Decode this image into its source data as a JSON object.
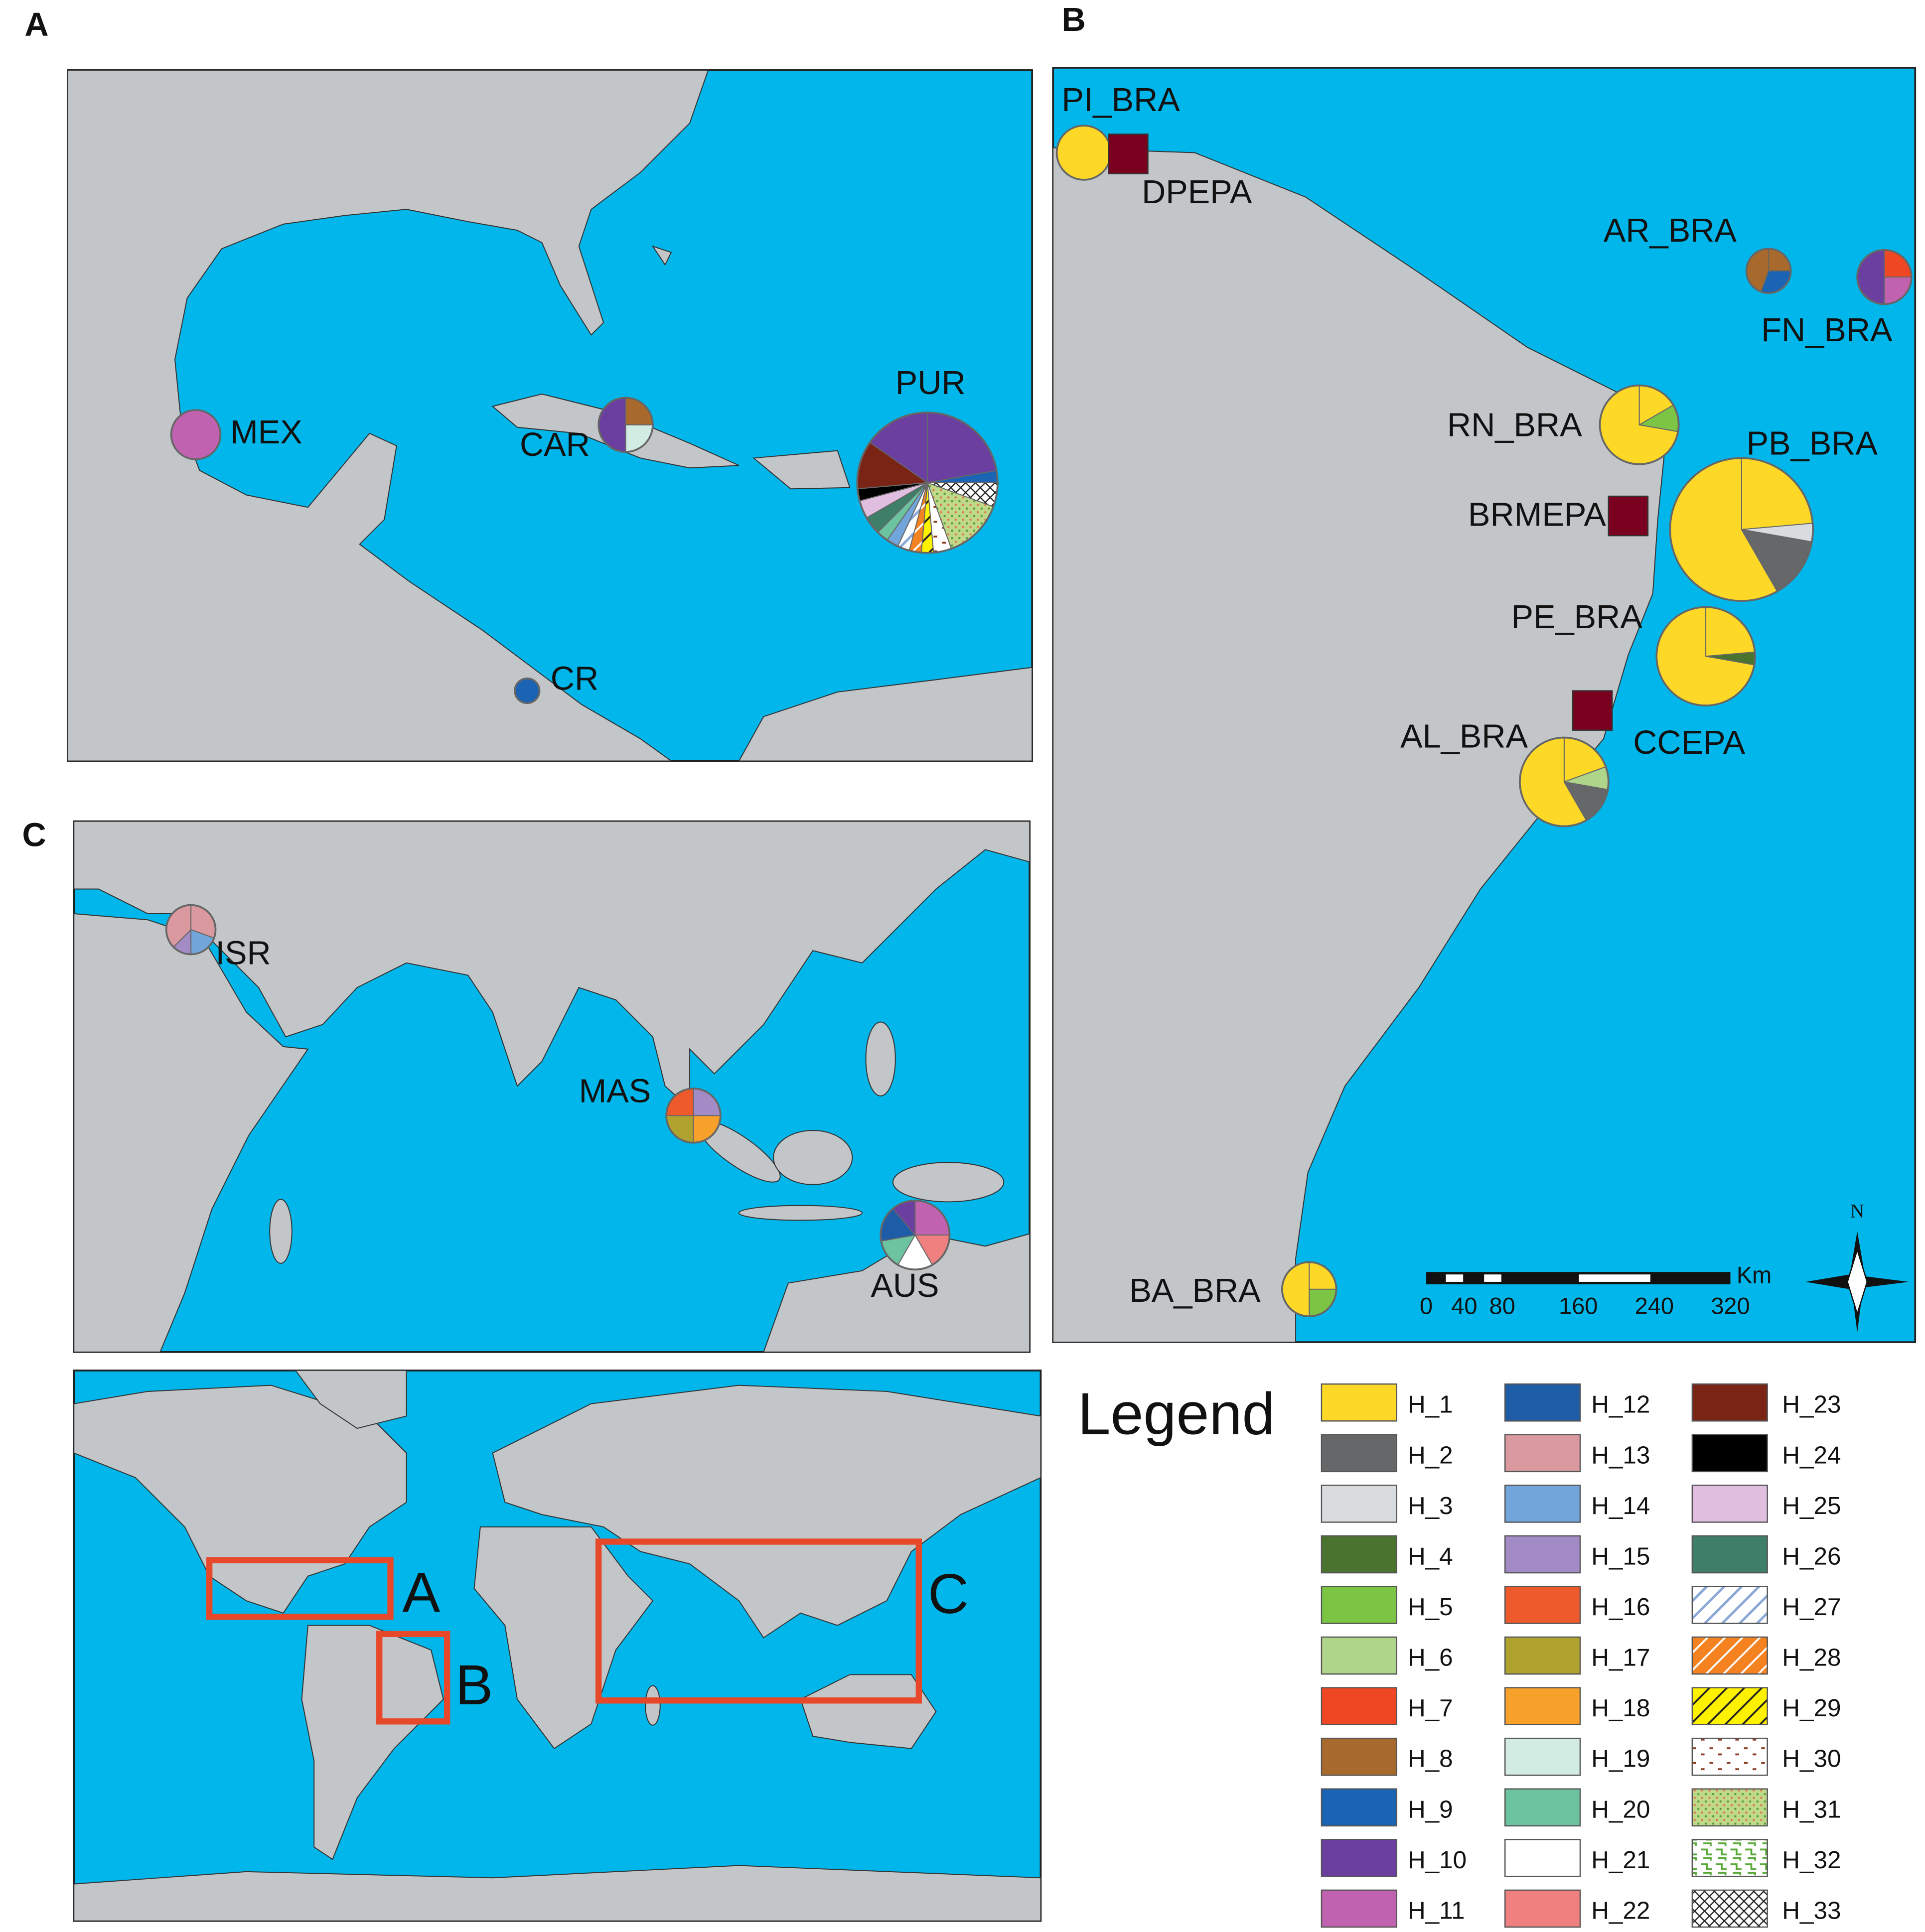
{
  "panel_labels": [
    "A",
    "B",
    "C"
  ],
  "sites": [
    "MEX",
    "CAR",
    "PUR",
    "CR",
    "PI_BRA",
    "DPEPA",
    "AR_BRA",
    "FN_BRA",
    "RN_BRA",
    "PB_BRA",
    "BRMEPA",
    "PE_BRA",
    "CCEPA",
    "AL_BRA",
    "BA_BRA",
    "ISR",
    "MAS",
    "AUS"
  ],
  "inset_labels": [
    "A",
    "B",
    "C"
  ],
  "scale_bar": {
    "unit": "Km",
    "ticks": [
      0,
      40,
      80,
      160,
      240,
      320
    ]
  },
  "north": "N",
  "legend": {
    "title": "Legend",
    "items": [
      {
        "label": "H_1",
        "color": "#fdd826"
      },
      {
        "label": "H_2",
        "color": "#656769"
      },
      {
        "label": "H_3",
        "color": "#d9dcdf"
      },
      {
        "label": "H_4",
        "color": "#4a7330"
      },
      {
        "label": "H_5",
        "color": "#7cc443"
      },
      {
        "label": "H_6",
        "color": "#afd58b"
      },
      {
        "label": "H_7",
        "color": "#ef4624"
      },
      {
        "label": "H_8",
        "color": "#a86a2c"
      },
      {
        "label": "H_9",
        "color": "#1b63b3"
      },
      {
        "label": "H_10",
        "color": "#6a3fa0"
      },
      {
        "label": "H_11",
        "color": "#c062b0"
      },
      {
        "label": "H_12",
        "color": "#1f5ca8"
      },
      {
        "label": "H_13",
        "color": "#d9999f"
      },
      {
        "label": "H_14",
        "color": "#72a6da"
      },
      {
        "label": "H_15",
        "color": "#a38bc6"
      },
      {
        "label": "H_16",
        "color": "#ee5a2b"
      },
      {
        "label": "H_17",
        "color": "#b0a22f"
      },
      {
        "label": "H_18",
        "color": "#f7a12a"
      },
      {
        "label": "H_19",
        "color": "#d2ebe3"
      },
      {
        "label": "H_20",
        "color": "#6cc3a0"
      },
      {
        "label": "H_21",
        "color": "#ffffff"
      },
      {
        "label": "H_22",
        "color": "#f08080"
      },
      {
        "label": "H_23",
        "color": "#7a2416"
      },
      {
        "label": "H_24",
        "color": "#000000"
      },
      {
        "label": "H_25",
        "color": "#e0bedf"
      },
      {
        "label": "H_26",
        "color": "#3f7f6a"
      },
      {
        "label": "H_27",
        "color": "#ffffff"
      },
      {
        "label": "H_28",
        "color": "#f58220"
      },
      {
        "label": "H_29",
        "color": "#fff200"
      },
      {
        "label": "H_30",
        "color": "#ffffff"
      },
      {
        "label": "H_31",
        "color": "#bfd98a"
      },
      {
        "label": "H_32",
        "color": "#ffffff"
      },
      {
        "label": "H_33",
        "color": "#ffffff"
      }
    ]
  }
}
